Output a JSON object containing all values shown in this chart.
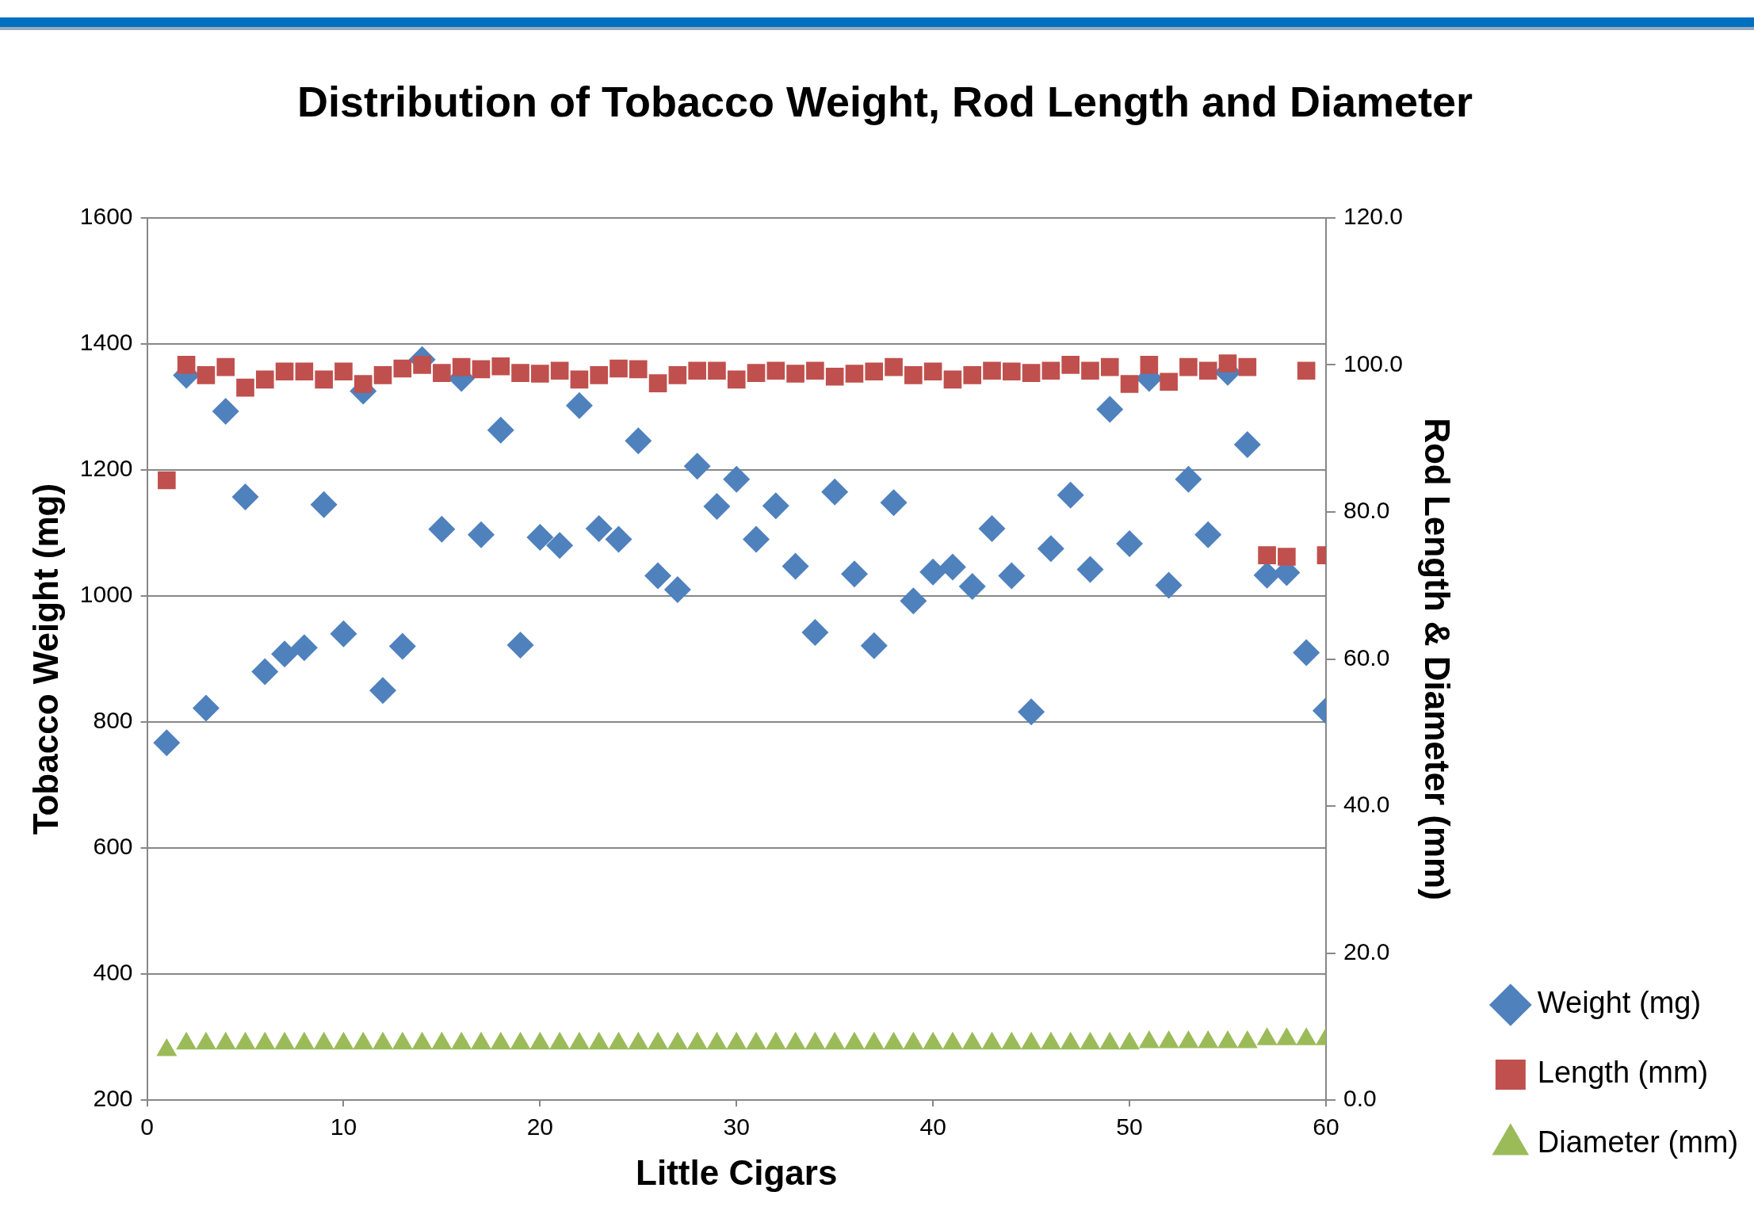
{
  "chart_data": {
    "type": "scatter",
    "title": "Distribution of Tobacco Weight, Rod Length and Diameter",
    "xlabel": "Little Cigars",
    "ylabel": "Tobacco Weight (mg)",
    "y2label": "Rod Length & Diameter (mm)",
    "x": [
      1,
      2,
      3,
      4,
      5,
      6,
      7,
      8,
      9,
      10,
      11,
      12,
      13,
      14,
      15,
      16,
      17,
      18,
      19,
      20,
      21,
      22,
      23,
      24,
      25,
      26,
      27,
      28,
      29,
      30,
      31,
      32,
      33,
      34,
      35,
      36,
      37,
      38,
      39,
      40,
      41,
      42,
      43,
      44,
      45,
      46,
      47,
      48,
      49,
      50,
      51,
      52,
      53,
      54,
      55,
      56,
      57,
      58,
      59,
      60
    ],
    "series": [
      {
        "name": "Weight (mg)",
        "color": "#4f81bd",
        "marker": "diamond",
        "values": [
          767,
          1350,
          822,
          1293,
          1157,
          880,
          908,
          918,
          1145,
          940,
          1325,
          850,
          920,
          1375,
          1106,
          1345,
          1097,
          1263,
          922,
          1093,
          1080,
          1302,
          1107,
          1090,
          1246,
          1032,
          1010,
          1206,
          1142,
          1185,
          1090,
          1143,
          1047,
          942,
          1165,
          1035,
          921,
          1148,
          992,
          1038,
          1046,
          1015,
          1107,
          1032,
          816,
          1075,
          1160,
          1042,
          1296,
          1083,
          1345,
          1017,
          1185,
          1097,
          1355,
          1240,
          1033,
          1037,
          910,
          818
        ]
      },
      {
        "name": "Length (mm)",
        "color": "#c0504d",
        "marker": "square",
        "axis": "y2",
        "values": [
          84.3,
          100.0,
          98.6,
          99.7,
          96.9,
          98.0,
          99.1,
          99.1,
          98.0,
          99.1,
          97.4,
          98.6,
          99.5,
          100.0,
          98.9,
          99.7,
          99.4,
          99.8,
          98.9,
          98.8,
          99.2,
          98.0,
          98.6,
          99.5,
          99.4,
          97.5,
          98.6,
          99.2,
          99.2,
          98.0,
          98.9,
          99.2,
          98.8,
          99.2,
          98.4,
          98.8,
          99.1,
          99.7,
          98.6,
          99.1,
          98.0,
          98.6,
          99.2,
          99.1,
          98.9,
          99.2,
          100.0,
          99.2,
          99.7,
          97.4,
          100.0,
          97.7,
          99.7,
          99.2,
          100.2,
          99.7,
          74.1,
          73.9,
          99.2,
          74.1
        ]
      },
      {
        "name": "Diameter (mm)",
        "color": "#9bbb59",
        "marker": "triangle",
        "axis": "y2",
        "values": [
          6.8,
          7.7,
          7.7,
          7.7,
          7.7,
          7.7,
          7.7,
          7.7,
          7.7,
          7.7,
          7.7,
          7.7,
          7.7,
          7.7,
          7.7,
          7.7,
          7.7,
          7.7,
          7.7,
          7.7,
          7.7,
          7.7,
          7.7,
          7.7,
          7.7,
          7.7,
          7.7,
          7.7,
          7.7,
          7.7,
          7.7,
          7.7,
          7.7,
          7.7,
          7.7,
          7.7,
          7.7,
          7.7,
          7.7,
          7.7,
          7.7,
          7.7,
          7.7,
          7.7,
          7.7,
          7.7,
          7.7,
          7.7,
          7.7,
          7.7,
          7.9,
          7.9,
          7.9,
          7.9,
          7.9,
          7.9,
          8.3,
          8.3,
          8.3,
          8.3
        ]
      }
    ],
    "xlim": [
      0,
      60
    ],
    "xticks": [
      0,
      10,
      20,
      30,
      40,
      50,
      60
    ],
    "ylim": [
      200,
      1600
    ],
    "yticks": [
      200,
      400,
      600,
      800,
      1000,
      1200,
      1400,
      1600
    ],
    "y2lim": [
      0,
      120
    ],
    "y2ticks": [
      {
        "value": 0,
        "label": "0.0"
      },
      {
        "value": 20,
        "label": "20.0"
      },
      {
        "value": 40,
        "label": "40.0"
      },
      {
        "value": 60,
        "label": "60.0"
      },
      {
        "value": 80,
        "label": "80.0"
      },
      {
        "value": 100,
        "label": "100.0"
      },
      {
        "value": 120,
        "label": "120.0"
      }
    ],
    "grid": "y",
    "legend": "right"
  }
}
